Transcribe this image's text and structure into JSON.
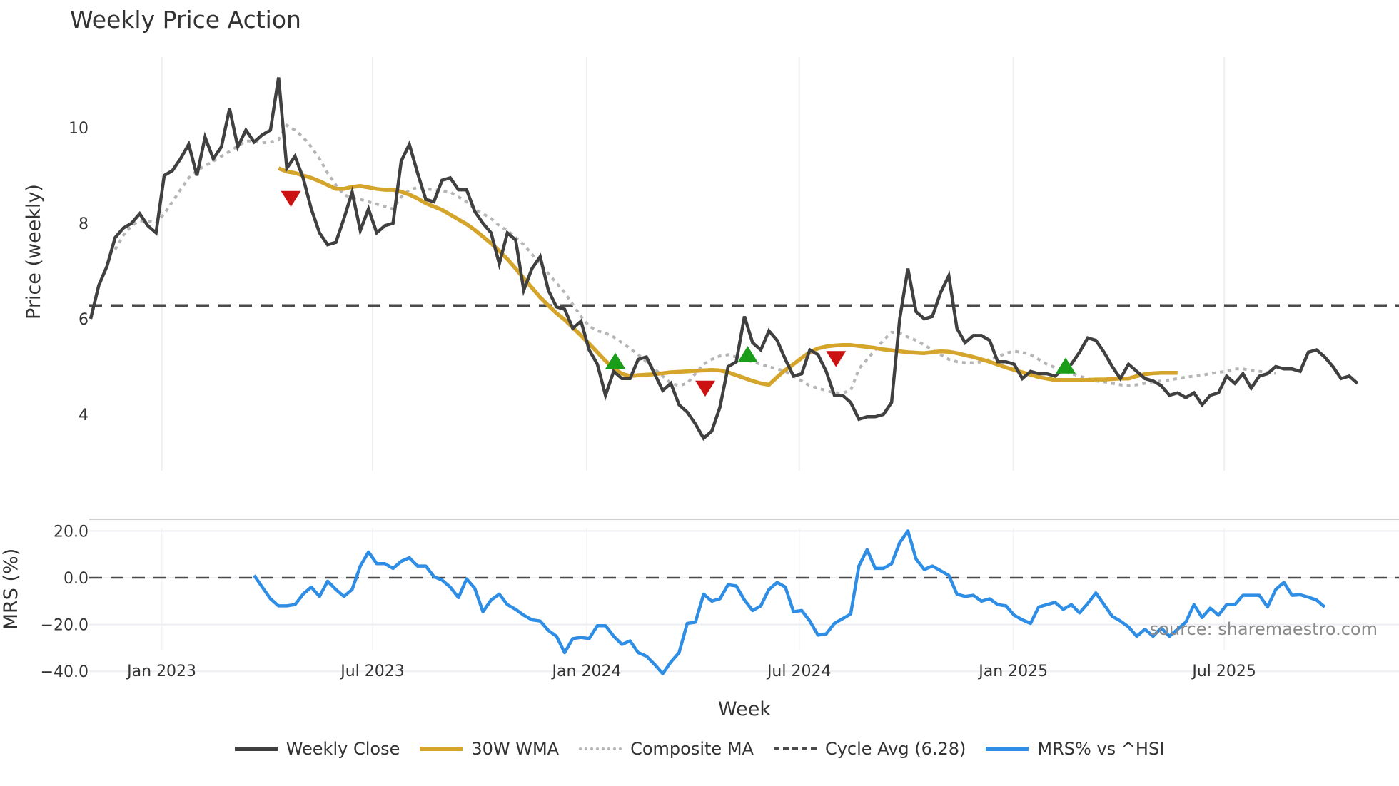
{
  "title": "Weekly Price Action",
  "source_text": "source: sharemaestro.com",
  "legend": [
    {
      "label": "Weekly Close",
      "style": "close"
    },
    {
      "label": "30W WMA",
      "style": "wma"
    },
    {
      "label": "Composite MA",
      "style": "comp"
    },
    {
      "label": "Cycle Avg (6.28)",
      "style": "cycle"
    },
    {
      "label": "MRS% vs ^HSI",
      "style": "mrs"
    }
  ],
  "colors": {
    "close": "#404040",
    "wma": "#d4a52a",
    "composite": "#b5b5b5",
    "cycle": "#4a4a4a",
    "mrs": "#2e8de5",
    "buy_marker": "#1a9e1a",
    "sell_marker": "#cc1111",
    "grid": "#eceef1"
  },
  "chart_data": [
    {
      "type": "line",
      "title": "Weekly Price Action",
      "xlabel": "Week",
      "ylabel": "Price (weekly)",
      "ylim": [
        3.2,
        11.3
      ],
      "yticks": [
        4,
        6,
        8,
        10
      ],
      "x_tick_labels": [
        "Jan 2023",
        "Jul 2023",
        "Jan 2024",
        "Jul 2024",
        "Jan 2025",
        "Jul 2025"
      ],
      "x_tick_week_index": [
        8.7,
        34.5,
        60.7,
        86.7,
        112.9,
        138.7
      ],
      "grid": "vertical",
      "x_start_note": "weekly points from ~Nov 2022 to ~Oct 2025",
      "cycle_avg": 6.28,
      "series": [
        {
          "name": "Weekly Close",
          "start_index": 0,
          "values": [
            6.0,
            6.7,
            7.1,
            7.7,
            7.9,
            8.0,
            8.2,
            7.95,
            7.8,
            9.0,
            9.1,
            9.35,
            9.65,
            9.0,
            9.8,
            9.35,
            9.6,
            10.4,
            9.6,
            9.95,
            9.7,
            9.85,
            9.95,
            11.05,
            9.15,
            9.4,
            8.95,
            8.3,
            7.8,
            7.55,
            7.6,
            8.1,
            8.65,
            7.85,
            8.3,
            7.8,
            7.95,
            8.0,
            9.3,
            9.65,
            9.05,
            8.5,
            8.45,
            8.9,
            8.95,
            8.7,
            8.7,
            8.25,
            8.0,
            7.8,
            7.15,
            7.8,
            7.65,
            6.6,
            7.05,
            7.3,
            6.6,
            6.25,
            6.2,
            5.8,
            5.95,
            5.35,
            5.05,
            4.4,
            4.9,
            4.75,
            4.75,
            5.15,
            5.2,
            4.85,
            4.5,
            4.65,
            4.2,
            4.05,
            3.8,
            3.5,
            3.65,
            4.15,
            5.0,
            5.1,
            6.05,
            5.5,
            5.35,
            5.75,
            5.55,
            5.15,
            4.8,
            4.85,
            5.35,
            5.25,
            4.9,
            4.4,
            4.4,
            4.25,
            3.9,
            3.95,
            3.95,
            4.0,
            4.25,
            6.0,
            7.05,
            6.15,
            6.0,
            6.05,
            6.55,
            6.9,
            5.8,
            5.5,
            5.65,
            5.65,
            5.55,
            5.1,
            5.1,
            5.05,
            4.75,
            4.9,
            4.85,
            4.85,
            4.8,
            4.95,
            5.05,
            5.3,
            5.6,
            5.55,
            5.3,
            5.0,
            4.75,
            5.05,
            4.9,
            4.75,
            4.7,
            4.6,
            4.4,
            4.45,
            4.35,
            4.45,
            4.2,
            4.4,
            4.45,
            4.8,
            4.65,
            4.85,
            4.55,
            4.8,
            4.85,
            5.0,
            4.95,
            4.95,
            4.9,
            5.3,
            5.35,
            5.2,
            5.0,
            4.75,
            4.8,
            4.65
          ]
        },
        {
          "name": "30W WMA",
          "start_index": 23,
          "values": [
            9.15,
            9.08,
            9.05,
            9.0,
            8.95,
            8.88,
            8.8,
            8.72,
            8.72,
            8.76,
            8.78,
            8.75,
            8.72,
            8.7,
            8.7,
            8.66,
            8.6,
            8.52,
            8.42,
            8.35,
            8.28,
            8.18,
            8.08,
            7.98,
            7.86,
            7.72,
            7.58,
            7.42,
            7.25,
            7.05,
            6.85,
            6.65,
            6.45,
            6.28,
            6.12,
            5.98,
            5.82,
            5.65,
            5.48,
            5.3,
            5.12,
            4.96,
            4.85,
            4.8,
            4.82,
            4.83,
            4.84,
            4.86,
            4.88,
            4.89,
            4.9,
            4.91,
            4.92,
            4.93,
            4.92,
            4.88,
            4.82,
            4.76,
            4.7,
            4.65,
            4.62,
            4.78,
            4.93,
            5.05,
            5.18,
            5.3,
            5.38,
            5.42,
            5.44,
            5.45,
            5.45,
            5.43,
            5.41,
            5.39,
            5.36,
            5.34,
            5.32,
            5.3,
            5.29,
            5.28,
            5.3,
            5.32,
            5.31,
            5.28,
            5.24,
            5.2,
            5.15,
            5.1,
            5.04,
            4.98,
            4.93,
            4.88,
            4.83,
            4.78,
            4.75,
            4.72,
            4.72,
            4.72,
            4.72,
            4.72,
            4.73,
            4.73,
            4.74,
            4.75,
            4.75,
            4.8,
            4.84,
            4.86,
            4.87,
            4.87,
            4.87
          ]
        },
        {
          "name": "Composite MA",
          "start_index": 3,
          "values": [
            7.45,
            7.75,
            7.95,
            8.05,
            8.05,
            8.0,
            8.2,
            8.45,
            8.7,
            8.95,
            9.1,
            9.2,
            9.3,
            9.4,
            9.5,
            9.62,
            9.72,
            9.72,
            9.68,
            9.7,
            9.75,
            10.05,
            9.95,
            9.8,
            9.6,
            9.35,
            9.05,
            8.8,
            8.6,
            8.52,
            8.5,
            8.45,
            8.4,
            8.35,
            8.3,
            8.55,
            8.7,
            8.75,
            8.72,
            8.7,
            8.68,
            8.65,
            8.55,
            8.45,
            8.3,
            8.2,
            8.1,
            7.95,
            7.85,
            7.7,
            7.55,
            7.35,
            7.15,
            6.95,
            6.75,
            6.55,
            6.3,
            6.05,
            5.85,
            5.75,
            5.7,
            5.62,
            5.5,
            5.38,
            5.25,
            5.1,
            4.95,
            4.8,
            4.65,
            4.6,
            4.65,
            4.85,
            5.05,
            5.15,
            5.22,
            5.25,
            5.2,
            5.15,
            5.1,
            5.05,
            5.0,
            4.95,
            4.9,
            4.8,
            4.7,
            4.6,
            4.55,
            4.5,
            4.45,
            4.45,
            4.5,
            4.95,
            5.15,
            5.35,
            5.55,
            5.72,
            5.7,
            5.62,
            5.55,
            5.45,
            5.35,
            5.25,
            5.15,
            5.1,
            5.08,
            5.08,
            5.1,
            5.15,
            5.2,
            5.28,
            5.32,
            5.3,
            5.25,
            5.15,
            5.05,
            4.98,
            4.92,
            4.85,
            4.8,
            4.75,
            4.7,
            4.68,
            4.65,
            4.62,
            4.6,
            4.62,
            4.65,
            4.68,
            4.7,
            4.72,
            4.75,
            4.78,
            4.8,
            4.82,
            4.85,
            4.88,
            4.9,
            4.95,
            4.95,
            4.92,
            4.9,
            4.88,
            4.86
          ]
        },
        {
          "name": "Cycle Avg (6.28)",
          "constant": 6.28
        }
      ],
      "markers": [
        {
          "type": "sell",
          "index": 24.5,
          "value": 8.55
        },
        {
          "type": "buy",
          "index": 64.2,
          "value": 5.08
        },
        {
          "type": "sell",
          "index": 75.2,
          "value": 4.58
        },
        {
          "type": "buy",
          "index": 80.4,
          "value": 5.22
        },
        {
          "type": "sell",
          "index": 91.2,
          "value": 5.2
        },
        {
          "type": "buy",
          "index": 119.3,
          "value": 4.98
        }
      ]
    },
    {
      "type": "line",
      "title": "",
      "xlabel": "Week",
      "ylabel": "MRS (%)",
      "ylim": [
        -42,
        24
      ],
      "yticks": [
        -40.0,
        -20.0,
        0.0,
        20.0
      ],
      "ytick_labels": [
        "−40.0",
        "−20.0",
        "0.0",
        "20.0"
      ],
      "zero_line": "dashed",
      "series": [
        {
          "name": "MRS% vs ^HSI",
          "start_index": 20,
          "values": [
            1,
            -4,
            -9,
            -12,
            -12,
            -11.5,
            -7,
            -4,
            -8,
            -1.5,
            -5,
            -8,
            -5,
            5,
            11,
            6,
            6,
            4,
            7,
            8.5,
            5,
            5,
            0.5,
            -1,
            -4,
            -8.5,
            -0.5,
            -4.5,
            -14.5,
            -9.5,
            -7,
            -11.5,
            -13.5,
            -16,
            -18,
            -18.5,
            -22.5,
            -25,
            -32,
            -26,
            -25.5,
            -26,
            -20.5,
            -20.5,
            -25,
            -28.5,
            -27,
            -32,
            -33.5,
            -37,
            -41,
            -36,
            -32,
            -19.5,
            -19,
            -7,
            -10,
            -9,
            -3,
            -3.5,
            -9.5,
            -14,
            -12,
            -5,
            -2,
            -4,
            -14.5,
            -14,
            -18.5,
            -24.5,
            -24,
            -19.5,
            -17.5,
            -15.5,
            5,
            12,
            4,
            4,
            6,
            15,
            20,
            8,
            3.5,
            5,
            3,
            1,
            -7,
            -8,
            -7.5,
            -10,
            -9,
            -11.5,
            -12,
            -16,
            -18,
            -19.5,
            -12.5,
            -11.5,
            -10.5,
            -13.5,
            -11.5,
            -15,
            -11,
            -6.5,
            -11.5,
            -16.5,
            -18.5,
            -21,
            -25,
            -22,
            -25,
            -21.5,
            -25,
            -22,
            -19,
            -11.5,
            -17,
            -13,
            -16,
            -11.5,
            -11.5,
            -7.5,
            -7.5,
            -7.5,
            -12.5,
            -5,
            -2,
            -7.5,
            -7.3,
            -8.3,
            -9.5,
            -12.5
          ]
        }
      ]
    }
  ],
  "axes": {
    "price": {
      "ylabel": "Price (weekly)",
      "yticks": [
        "10",
        "8",
        "6",
        "4"
      ]
    },
    "mrs": {
      "ylabel": "MRS (%)",
      "yticks": [
        "20.0",
        "0.0",
        "−20.0",
        "−40.0"
      ]
    },
    "xlabel": "Week",
    "xticks": [
      "Jan 2023",
      "Jul 2023",
      "Jan 2024",
      "Jul 2024",
      "Jan 2025",
      "Jul 2025"
    ]
  }
}
